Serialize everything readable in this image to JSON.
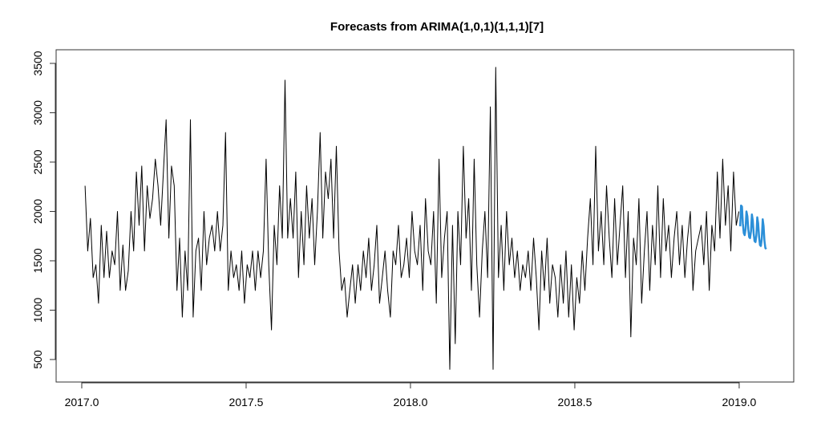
{
  "chart_data": {
    "type": "line",
    "title": "Forecasts from ARIMA(1,0,1)(1,1,1)[7]",
    "xlabel": "",
    "ylabel": "",
    "xlim": [
      2016.922,
      2019.166
    ],
    "ylim": [
      272,
      3638
    ],
    "x_ticks": [
      {
        "value": 2017.0,
        "label": "2017.0"
      },
      {
        "value": 2017.5,
        "label": "2017.5"
      },
      {
        "value": 2018.0,
        "label": "2018.0"
      },
      {
        "value": 2018.5,
        "label": "2018.5"
      },
      {
        "value": 2019.0,
        "label": "2019.0"
      }
    ],
    "y_ticks": [
      {
        "value": 500,
        "label": "500"
      },
      {
        "value": 1000,
        "label": "1000"
      },
      {
        "value": 1500,
        "label": "1500"
      },
      {
        "value": 2000,
        "label": "2000"
      },
      {
        "value": 2500,
        "label": "2500"
      },
      {
        "value": 3000,
        "label": "3000"
      },
      {
        "value": 3500,
        "label": "3500"
      }
    ],
    "grid": false,
    "series": [
      {
        "name": "observed",
        "color": "#000000",
        "start": 2017.01,
        "step": 0.00822,
        "values": [
          2260,
          1600,
          1930,
          1330,
          1460,
          1070,
          1860,
          1330,
          1800,
          1330,
          1600,
          1460,
          2000,
          1200,
          1660,
          1200,
          1400,
          2000,
          1600,
          2400,
          1860,
          2460,
          1600,
          2260,
          1930,
          2130,
          2530,
          2260,
          1860,
          2400,
          2930,
          1730,
          2460,
          2260,
          1200,
          1730,
          930,
          1600,
          1200,
          2930,
          930,
          1600,
          1730,
          1200,
          2000,
          1460,
          1730,
          1860,
          1600,
          2000,
          1600,
          1860,
          2800,
          1200,
          1600,
          1330,
          1460,
          1200,
          1600,
          1070,
          1460,
          1330,
          1600,
          1200,
          1600,
          1330,
          1600,
          2530,
          1460,
          800,
          1860,
          1460,
          2260,
          1730,
          3330,
          1730,
          2130,
          1730,
          2400,
          1330,
          2000,
          1460,
          2260,
          1730,
          2130,
          1460,
          2000,
          2800,
          1730,
          2400,
          2130,
          2530,
          1730,
          2660,
          1600,
          1200,
          1330,
          930,
          1200,
          1460,
          1070,
          1460,
          1200,
          1600,
          1330,
          1730,
          1200,
          1460,
          1860,
          1070,
          1330,
          1600,
          1200,
          930,
          1600,
          1460,
          1860,
          1330,
          1460,
          1730,
          1330,
          2000,
          1600,
          1460,
          1860,
          1200,
          2130,
          1600,
          1460,
          2000,
          1070,
          2530,
          1330,
          1730,
          2000,
          400,
          1860,
          660,
          2000,
          1460,
          2660,
          1730,
          2130,
          1200,
          2530,
          1460,
          930,
          1600,
          2000,
          1330,
          3060,
          400,
          3460,
          1330,
          1860,
          1200,
          2000,
          1460,
          1730,
          1330,
          1600,
          1200,
          1460,
          1330,
          1600,
          1200,
          1730,
          1330,
          800,
          1600,
          1200,
          1730,
          1070,
          1460,
          1330,
          930,
          1460,
          1070,
          1600,
          930,
          1460,
          800,
          1330,
          1070,
          1600,
          1200,
          1730,
          2130,
          1460,
          2660,
          1600,
          2000,
          1460,
          2260,
          1730,
          1330,
          2130,
          1460,
          1860,
          2260,
          1330,
          2000,
          730,
          1730,
          1460,
          2130,
          1070,
          1600,
          2000,
          1200,
          1860,
          1460,
          2260,
          1330,
          2130,
          1600,
          1860,
          1330,
          1730,
          2000,
          1460,
          1860,
          1330,
          1730,
          2000,
          1200,
          1600,
          1730,
          1860,
          1460,
          2000,
          1200,
          1860,
          1600,
          2400,
          1730,
          2530,
          1860,
          2260,
          1600,
          2400,
          1860,
          2000
        ]
      },
      {
        "name": "forecast",
        "color": "#2b8fd8",
        "start": 2019.003,
        "step": 0.00274,
        "values": [
          1850,
          2060,
          2050,
          1880,
          1780,
          1760,
          1820,
          2000,
          1950,
          1820,
          1740,
          1730,
          1800,
          1970,
          1910,
          1780,
          1700,
          1690,
          1760,
          1940,
          1880,
          1740,
          1660,
          1650,
          1720,
          1920,
          1850,
          1700,
          1630,
          1620
        ]
      }
    ]
  }
}
